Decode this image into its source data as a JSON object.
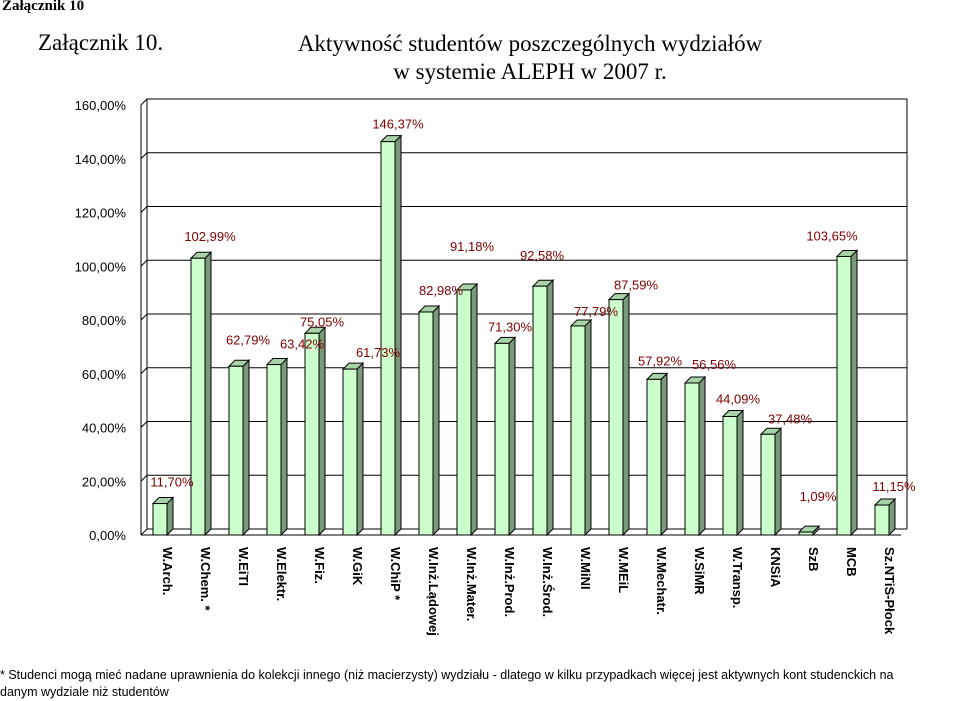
{
  "header": {
    "annex_label": "Załącznik 10",
    "annex_title": "Załącznik 10.",
    "title_line1": "Aktywność studentów poszczególnych wydziałów",
    "title_line2": "w systemie ALEPH w 2007 r."
  },
  "chart_data": {
    "type": "bar",
    "title": "Aktywność studentów poszczególnych wydziałów w systemie ALEPH w 2007 r.",
    "xlabel": "",
    "ylabel": "",
    "ylim": [
      0,
      160
    ],
    "y_ticks": [
      0,
      20,
      40,
      60,
      80,
      100,
      120,
      140,
      160
    ],
    "y_tick_labels": [
      "0,00%",
      "20,00%",
      "40,00%",
      "60,00%",
      "80,00%",
      "100,00%",
      "120,00%",
      "140,00%",
      "160,00%"
    ],
    "grid": true,
    "legend": "none",
    "categories": [
      "W.Arch.",
      "W.Chem. *",
      "W.EiTI",
      "W.Elektr.",
      "W.Fiz.",
      "W.GiK",
      "W.ChiP *",
      "W.Inż.Lądowej",
      "W.Inż.Mater.",
      "W.Inż.Prod.",
      "W.Inż.Środ.",
      "W.MiNI",
      "W.MEiL",
      "W.Mechatr.",
      "W.SiMR",
      "W.Transp.",
      "KNSiA",
      "SzB",
      "MCB",
      "Sz.NTiS-Płock"
    ],
    "values": [
      11.7,
      102.99,
      62.79,
      63.42,
      75.05,
      61.73,
      146.37,
      82.98,
      91.18,
      71.3,
      92.58,
      77.79,
      87.59,
      57.92,
      56.56,
      44.09,
      37.48,
      1.09,
      103.65,
      11.15
    ],
    "data_labels": [
      "11,70%",
      "102,99%",
      "62,79%",
      "63,42%",
      "75,05%",
      "61,73%",
      "146,37%",
      "82,98%",
      "91,18%",
      "71,30%",
      "92,58%",
      "77,79%",
      "87,59%",
      "57,92%",
      "56,56%",
      "44,09%",
      "37,48%",
      "1,09%",
      "103,65%",
      "11,15%"
    ],
    "colors": {
      "bar_front": "#CCFFCC",
      "bar_side": "#7A997A",
      "bar_top": "#A8D3A8",
      "data_label": "#800000",
      "gridline": "#000000"
    }
  },
  "footnote": {
    "line1": "*  Studenci mogą mieć nadane uprawnienia do kolekcji innego (niż macierzysty) wydziału - dlatego w kilku przypadkach  więcej jest aktywnych kont studenckich na",
    "line2": "danym wydziale niż studentów"
  }
}
